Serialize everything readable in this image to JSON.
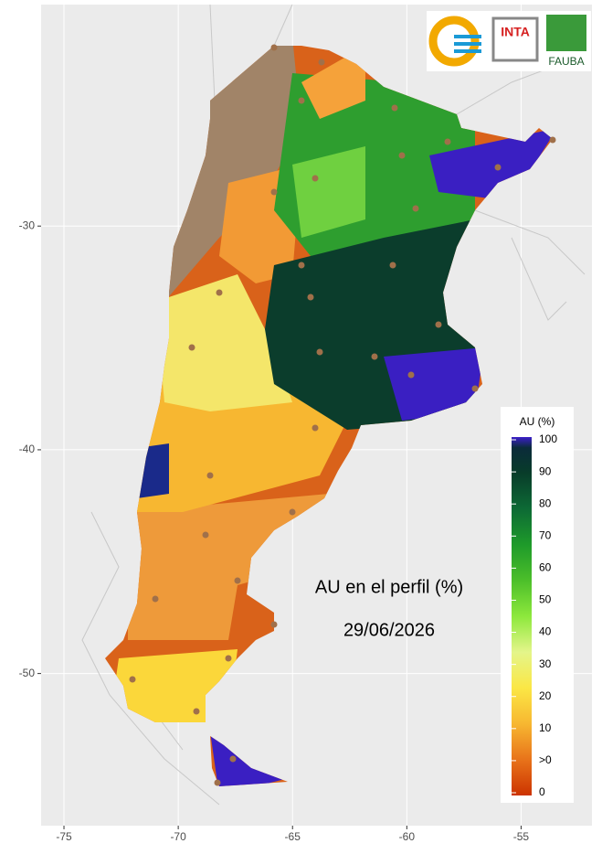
{
  "map": {
    "xlim": [
      -76.0,
      -51.9
    ],
    "ylim": [
      -56.8,
      -20.1
    ],
    "xticks": [
      -75,
      -70,
      -65,
      -60,
      -55
    ],
    "yticks": [
      -30,
      -40,
      -50
    ],
    "legend": {
      "title": "AU (%)",
      "labels": [
        100,
        90,
        80,
        70,
        60,
        50,
        40,
        30,
        20,
        10,
        ">0",
        0
      ]
    },
    "annotations": [
      "AU en el perfil (%)",
      "29/06/2026"
    ],
    "logos": [
      "INTA",
      "FAUBA"
    ]
  }
}
